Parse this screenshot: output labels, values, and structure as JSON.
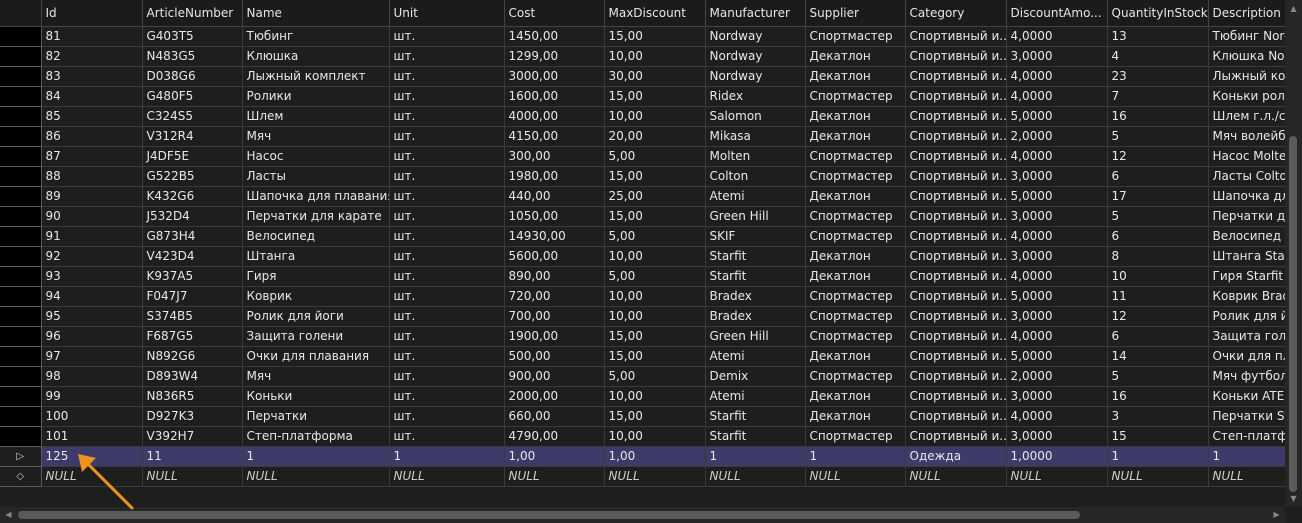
{
  "columns": [
    "Id",
    "ArticleNumber",
    "Name",
    "Unit",
    "Cost",
    "MaxDiscount",
    "Manufacturer",
    "Supplier",
    "Category",
    "DiscountAmo...",
    "QuantityInStock",
    "Description"
  ],
  "rows": [
    [
      "81",
      "G403T5",
      "Тюбинг",
      "шт.",
      "1450,00",
      "15,00",
      "Nordway",
      "Спортмастер",
      "Спортивный и...",
      "4,0000",
      "13",
      "Тюбинг Nordw"
    ],
    [
      "82",
      "N483G5",
      "Клюшка",
      "шт.",
      "1299,00",
      "10,00",
      "Nordway",
      "Декатлон",
      "Спортивный и...",
      "3,0000",
      "4",
      "Клюшка Nord."
    ],
    [
      "83",
      "D038G6",
      "Лыжный комплект",
      "шт.",
      "3000,00",
      "30,00",
      "Nordway",
      "Декатлон",
      "Спортивный и...",
      "4,0000",
      "23",
      "Лыжный комп"
    ],
    [
      "84",
      "G480F5",
      "Ролики",
      "шт.",
      "1600,00",
      "15,00",
      "Ridex",
      "Спортмастер",
      "Спортивный и...",
      "4,0000",
      "7",
      "Коньки ролик."
    ],
    [
      "85",
      "C324S5",
      "Шлем",
      "шт.",
      "4000,00",
      "10,00",
      "Salomon",
      "Декатлон",
      "Спортивный и...",
      "5,0000",
      "16",
      "Шлем г.л./сно"
    ],
    [
      "86",
      "V312R4",
      "Мяч",
      "шт.",
      "4150,00",
      "20,00",
      "Mikasa",
      "Декатлон",
      "Спортивный и...",
      "2,0000",
      "5",
      "Мяч волейбол"
    ],
    [
      "87",
      "J4DF5E",
      "Насос",
      "шт.",
      "300,00",
      "5,00",
      "Molten",
      "Спортмастер",
      "Спортивный и...",
      "4,0000",
      "12",
      "Насос Molten"
    ],
    [
      "88",
      "G522B5",
      "Ласты",
      "шт.",
      "1980,00",
      "15,00",
      "Colton",
      "Спортмастер",
      "Спортивный и...",
      "3,0000",
      "6",
      "Ласты Colton ."
    ],
    [
      "89",
      "K432G6",
      "Шапочка для плавания",
      "шт.",
      "440,00",
      "25,00",
      "Atemi",
      "Декатлон",
      "Спортивный и...",
      "5,0000",
      "17",
      "Шапочка для п"
    ],
    [
      "90",
      "J532D4",
      "Перчатки для карате",
      "шт.",
      "1050,00",
      "15,00",
      "Green Hill",
      "Спортмастер",
      "Спортивный и...",
      "3,0000",
      "5",
      "Перчатки для"
    ],
    [
      "91",
      "G873H4",
      "Велосипед",
      "шт.",
      "14930,00",
      "5,00",
      "SKIF",
      "Спортмастер",
      "Спортивный и...",
      "4,0000",
      "6",
      "Велосипед SKI"
    ],
    [
      "92",
      "V423D4",
      "Штанга",
      "шт.",
      "5600,00",
      "10,00",
      "Starfit",
      "Декатлон",
      "Спортивный и...",
      "3,0000",
      "8",
      "Штанга Starfit ."
    ],
    [
      "93",
      "K937A5",
      "Гиря",
      "шт.",
      "890,00",
      "5,00",
      "Starfit",
      "Декатлон",
      "Спортивный и...",
      "4,0000",
      "10",
      "Гиря Starfit ГМ"
    ],
    [
      "94",
      "F047J7",
      "Коврик",
      "шт.",
      "720,00",
      "10,00",
      "Bradex",
      "Спортмастер",
      "Спортивный и...",
      "5,0000",
      "11",
      "Коврик Bradex"
    ],
    [
      "95",
      "S374B5",
      "Ролик для йоги",
      "шт.",
      "700,00",
      "10,00",
      "Bradex",
      "Спортмастер",
      "Спортивный и...",
      "3,0000",
      "12",
      "Ролик для йог"
    ],
    [
      "96",
      "F687G5",
      "Защита голени",
      "шт.",
      "1900,00",
      "15,00",
      "Green Hill",
      "Спортмастер",
      "Спортивный и...",
      "4,0000",
      "6",
      "Защита голен."
    ],
    [
      "97",
      "N892G6",
      "Очки для плавания",
      "шт.",
      "500,00",
      "15,00",
      "Atemi",
      "Декатлон",
      "Спортивный и...",
      "5,0000",
      "14",
      "Очки для плав"
    ],
    [
      "98",
      "D893W4",
      "Мяч",
      "шт.",
      "900,00",
      "5,00",
      "Demix",
      "Спортмастер",
      "Спортивный и...",
      "2,0000",
      "5",
      "Мяч футбольн"
    ],
    [
      "99",
      "N836R5",
      "Коньки",
      "шт.",
      "2000,00",
      "10,00",
      "Atemi",
      "Декатлон",
      "Спортивный и...",
      "3,0000",
      "16",
      "Коньки ATEMI"
    ],
    [
      "100",
      "D927K3",
      "Перчатки",
      "шт.",
      "660,00",
      "15,00",
      "Starfit",
      "Декатлон",
      "Спортивный и...",
      "4,0000",
      "3",
      "Перчатки Starf"
    ],
    [
      "101",
      "V392H7",
      "Степ-платформа",
      "шт.",
      "4790,00",
      "10,00",
      "Starfit",
      "Спортмастер",
      "Спортивный и...",
      "3,0000",
      "15",
      "Степ-платфорі"
    ]
  ],
  "selected_row": [
    "125",
    "11",
    "1",
    "1",
    "1,00",
    "1,00",
    "1",
    "1",
    "Одежда",
    "1,0000",
    "1",
    "1"
  ],
  "new_row": [
    "NULL",
    "NULL",
    "NULL",
    "NULL",
    "NULL",
    "NULL",
    "NULL",
    "NULL",
    "NULL",
    "NULL",
    "NULL",
    "NULL"
  ],
  "icons": {
    "current_row": "current-row-indicator-icon",
    "new_row": "new-row-indicator-icon",
    "annotation": "orange-arrow-icon"
  },
  "colors": {
    "selected_row_bg": "#3e3a6a",
    "grid_bg": "#1e1e1e",
    "row_header_bg": "#000000",
    "annotation_arrow": "#f0921e"
  }
}
